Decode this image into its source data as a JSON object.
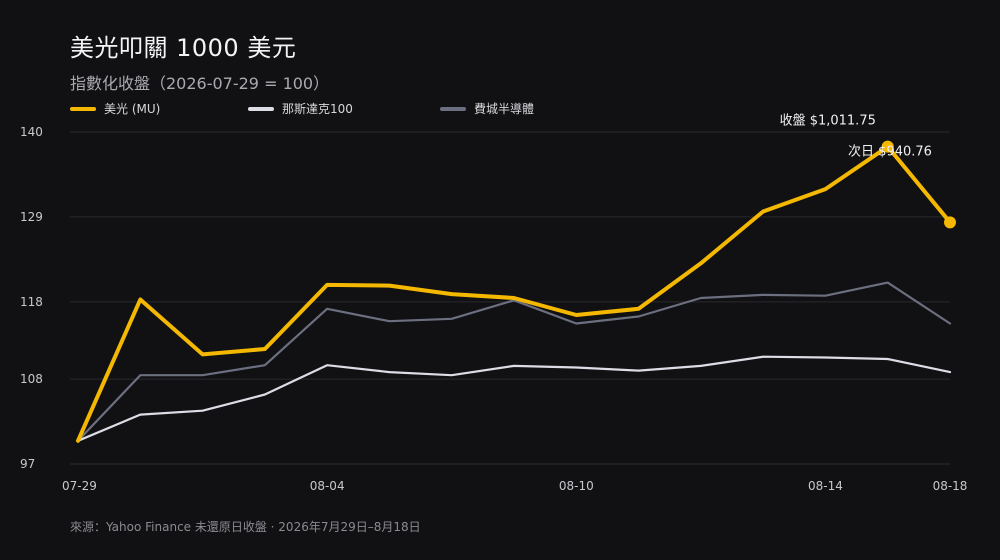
{
  "title": "美光叩關 1000 美元",
  "subtitle": "指數化收盤（2026-07-29 = 100）",
  "source": "來源：Yahoo Finance 未還原日收盤 · 2026年7月29日–8月18日",
  "legend": [
    {
      "label": "美光 (MU)",
      "color": "#f5b800"
    },
    {
      "label": "那斯達克100",
      "color": "#dcdde6"
    },
    {
      "label": "費城半導體",
      "color": "#6b6f80"
    }
  ],
  "chart_data": {
    "type": "line",
    "x": [
      "07-29",
      "07-30",
      "07-31",
      "08-03",
      "08-04",
      "08-05",
      "08-06",
      "08-07",
      "08-10",
      "08-11",
      "08-12",
      "08-13",
      "08-14",
      "08-17",
      "08-18"
    ],
    "x_tick_labels": [
      "07-29",
      "08-04",
      "08-10",
      "08-14",
      "08-18"
    ],
    "y_ticks": [
      97,
      108,
      118,
      129,
      140
    ],
    "ylim": [
      97,
      140
    ],
    "series": [
      {
        "name": "美光 (MU)",
        "color": "#f5b800",
        "values": [
          100,
          118.3,
          111.2,
          111.9,
          120.2,
          120.1,
          119.0,
          118.5,
          116.3,
          117.1,
          123.0,
          129.7,
          132.6,
          138.1,
          128.3
        ]
      },
      {
        "name": "那斯達克100",
        "color": "#dcdde6",
        "values": [
          100,
          103.4,
          103.9,
          106.0,
          109.8,
          108.9,
          108.5,
          109.7,
          109.5,
          109.1,
          109.7,
          110.9,
          110.8,
          110.6,
          108.9
        ]
      },
      {
        "name": "費城半導體",
        "color": "#6b6f80",
        "values": [
          100,
          108.5,
          108.5,
          109.8,
          117.1,
          115.5,
          115.8,
          118.2,
          115.2,
          116.1,
          118.5,
          118.9,
          118.8,
          120.5,
          115.2
        ]
      }
    ],
    "annotations": [
      {
        "text": "收盤 $1,011.75",
        "series": 0,
        "index": 13
      },
      {
        "text": "次日 $940.76",
        "series": 0,
        "index": 14
      }
    ],
    "grid": true
  }
}
